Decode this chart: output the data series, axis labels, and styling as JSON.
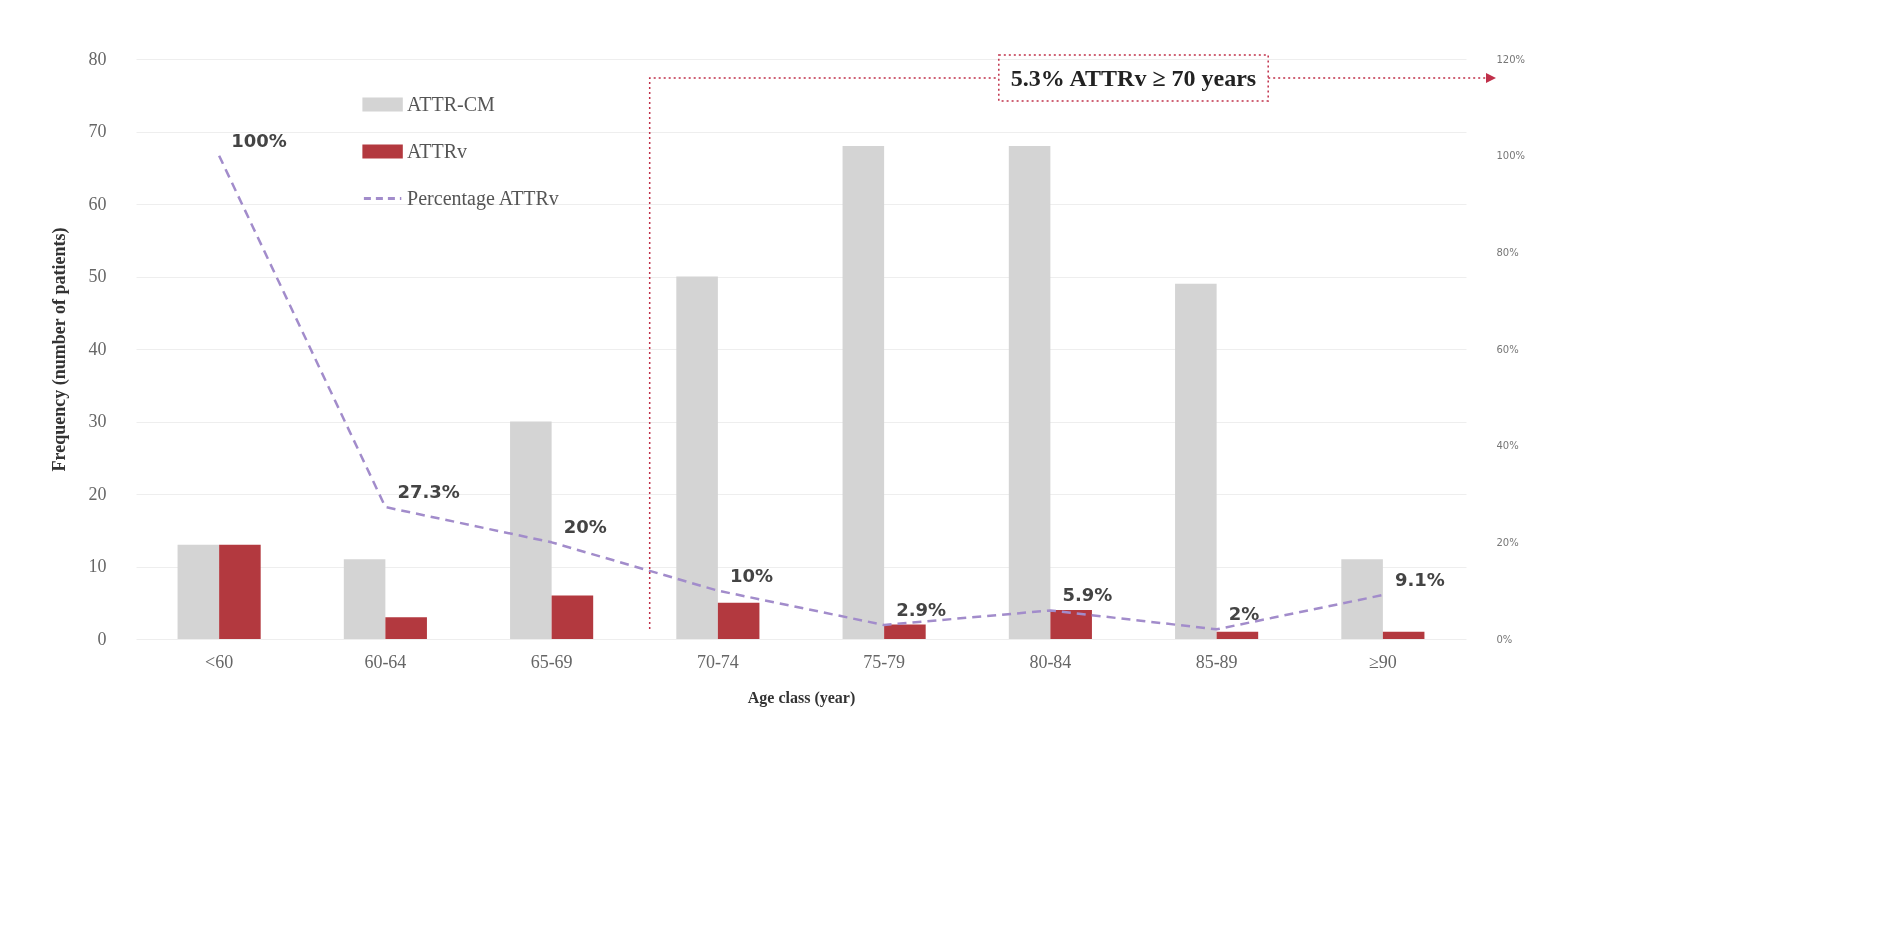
{
  "chart_data": {
    "type": "bar",
    "xlabel": "Age class (year)",
    "ylabel": "Frequency (number of patients)",
    "categories": [
      "<60",
      "60-64",
      "65-69",
      "70-74",
      "75-79",
      "80-84",
      "85-89",
      "≥90"
    ],
    "ylim": [
      0,
      80
    ],
    "yticks": [
      0,
      10,
      20,
      30,
      40,
      50,
      60,
      70,
      80
    ],
    "y2lim": [
      0,
      120
    ],
    "y2ticks": [
      {
        "value": 0,
        "label": "0%"
      },
      {
        "value": 20,
        "label": "20%"
      },
      {
        "value": 40,
        "label": "40%"
      },
      {
        "value": 60,
        "label": "60%"
      },
      {
        "value": 80,
        "label": "80%"
      },
      {
        "value": 100,
        "label": "100%"
      },
      {
        "value": 120,
        "label": "120%"
      }
    ],
    "grid": "y",
    "legend": "top left",
    "annotations": [
      "5.3% ATTRv ≥ 70 years"
    ],
    "series": [
      {
        "name": "ATTR-CM",
        "color": "#d4d4d4",
        "values": [
          13,
          11,
          30,
          50,
          68,
          68,
          49,
          11
        ]
      },
      {
        "name": "ATTRv",
        "color": "#b3393f",
        "values": [
          13,
          3,
          6,
          5,
          2,
          4,
          1,
          1
        ]
      },
      {
        "name": "Percentage ATTRv",
        "type": "line",
        "axis": "y2",
        "color": "#a28ccb",
        "line_style": "dashed",
        "marker": "none",
        "values": [
          100,
          27.3,
          20,
          10,
          2.9,
          5.9,
          2,
          9.1
        ],
        "value_labels": [
          "100%",
          "27.3%",
          "20%",
          "10%",
          "2.9%",
          "5.9%",
          "2%",
          "9.1%"
        ]
      }
    ]
  }
}
